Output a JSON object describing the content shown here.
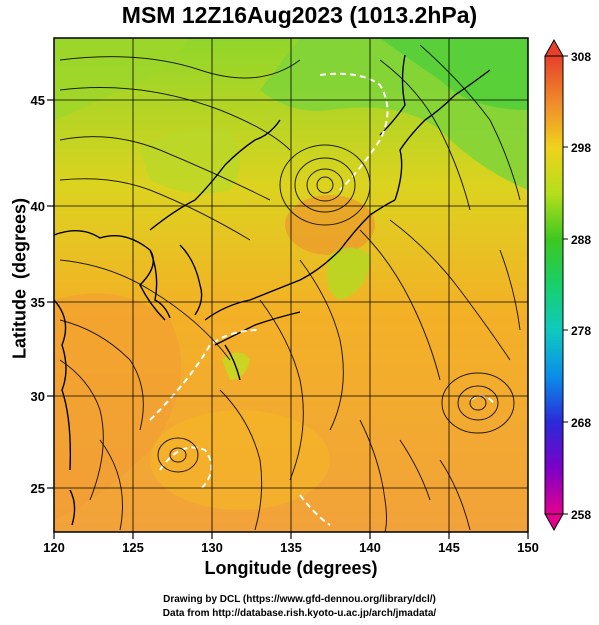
{
  "title": "MSM 12Z16Aug2023 (1013.2hPa)",
  "map": {
    "x_axis_title": "Longitude (degrees)",
    "y_axis_title": "Latitude  (degrees)",
    "x_ticks": [
      "120",
      "125",
      "130",
      "135",
      "140",
      "145",
      "150"
    ],
    "y_ticks": [
      "25",
      "30",
      "35",
      "40",
      "45"
    ],
    "lon_range": [
      120,
      150
    ],
    "lat_range": [
      22.4,
      47.6
    ],
    "field": "temperature (K) shading with wind streamlines",
    "colorbar": {
      "labels": [
        "308",
        "298",
        "288",
        "278",
        "268",
        "258"
      ],
      "range": [
        258,
        308
      ],
      "colors": [
        "#e3008f",
        "#7c00c8",
        "#2a2ad8",
        "#0aa6e8",
        "#18cf98",
        "#1fc63c",
        "#a3dc1b",
        "#ece61c",
        "#f4b418",
        "#f08a2a",
        "#e6402c"
      ]
    }
  },
  "credits": {
    "line1": "Drawing by DCL (https://www.gfd-dennou.org/library/dcl/)",
    "line2": "Data from http://database.rish.kyoto-u.ac.jp/arch/jmadata/"
  }
}
